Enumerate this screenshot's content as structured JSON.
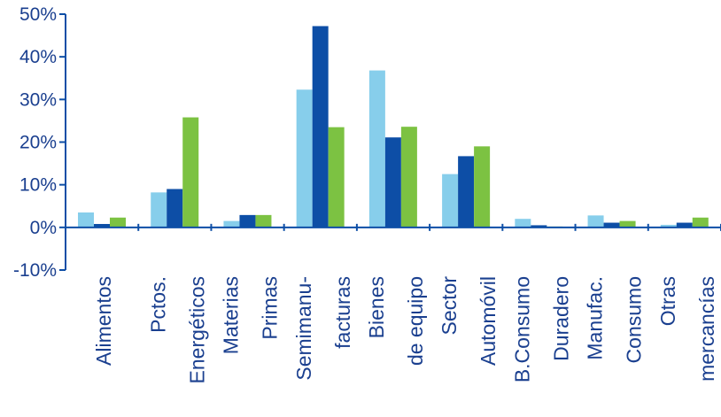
{
  "chart_data": {
    "type": "bar",
    "categories": [
      [
        "Alimentos"
      ],
      [
        "Pctos.",
        "Energéticos"
      ],
      [
        "Materias",
        "Primas"
      ],
      [
        "Semimanu-",
        "facturas"
      ],
      [
        "Bienes",
        "de equipo"
      ],
      [
        "Sector",
        "Automóvil"
      ],
      [
        "B.Consumo",
        "Duradero"
      ],
      [
        "Manufac.",
        "Consumo"
      ],
      [
        "Otras",
        "mercancías"
      ]
    ],
    "series": [
      {
        "color": "#87CEEB",
        "values": [
          3.5,
          8.2,
          1.5,
          32.3,
          36.8,
          12.5,
          2.0,
          2.8,
          0.6
        ]
      },
      {
        "color": "#0D4EA6",
        "values": [
          0.8,
          9.0,
          2.9,
          47.2,
          21.1,
          16.7,
          0.5,
          1.1,
          1.1
        ]
      },
      {
        "color": "#7CC242",
        "values": [
          2.3,
          25.8,
          2.9,
          23.5,
          23.6,
          19.0,
          0.2,
          1.5,
          2.3
        ]
      }
    ],
    "ylim": [
      -10,
      50
    ],
    "yticks": [
      -10,
      0,
      10,
      20,
      30,
      40,
      50
    ],
    "ytick_labels": [
      "-10%",
      "0%",
      "10%",
      "20%",
      "30%",
      "40%",
      "50%"
    ],
    "grid": false,
    "axis_color": "#0D4EA6",
    "label_color": "#1a3f8f"
  }
}
